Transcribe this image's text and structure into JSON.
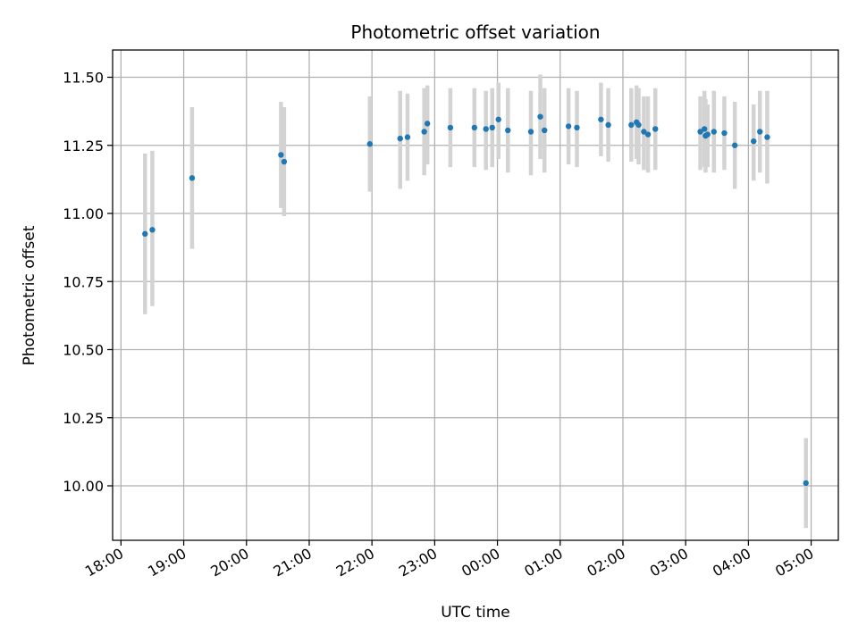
{
  "chart_data": {
    "type": "scatter",
    "title": "Photometric offset variation",
    "xlabel": "UTC time",
    "ylabel": "Photometric offset",
    "grid": true,
    "x_axis": {
      "kind": "time",
      "min": "18:00",
      "max": "05:00",
      "range": [
        "17:52",
        "05:26"
      ],
      "ticks": [
        "18:00",
        "19:00",
        "20:00",
        "21:00",
        "22:00",
        "23:00",
        "00:00",
        "01:00",
        "02:00",
        "03:00",
        "04:00",
        "05:00"
      ]
    },
    "y_axis": {
      "range": [
        9.8,
        11.6
      ],
      "ticks": [
        10.0,
        10.25,
        10.5,
        10.75,
        11.0,
        11.25,
        11.5
      ],
      "tick_labels": [
        "10.00",
        "10.25",
        "10.50",
        "10.75",
        "11.00",
        "11.25",
        "11.50"
      ]
    },
    "colors": {
      "points": "#1f77b4",
      "errorbars": "#d3d3d3",
      "grid": "#b0b0b0"
    },
    "points": [
      {
        "t": "18:23",
        "y": 10.925,
        "lo": 10.63,
        "hi": 11.22
      },
      {
        "t": "18:30",
        "y": 10.94,
        "lo": 10.66,
        "hi": 11.23
      },
      {
        "t": "19:08",
        "y": 11.13,
        "lo": 10.87,
        "hi": 11.39
      },
      {
        "t": "20:33",
        "y": 11.215,
        "lo": 11.02,
        "hi": 11.41
      },
      {
        "t": "20:36",
        "y": 11.19,
        "lo": 10.99,
        "hi": 11.39
      },
      {
        "t": "21:58",
        "y": 11.255,
        "lo": 11.08,
        "hi": 11.43
      },
      {
        "t": "22:27",
        "y": 11.275,
        "lo": 11.09,
        "hi": 11.45
      },
      {
        "t": "22:34",
        "y": 11.28,
        "lo": 11.12,
        "hi": 11.44
      },
      {
        "t": "22:50",
        "y": 11.3,
        "lo": 11.14,
        "hi": 11.46
      },
      {
        "t": "22:53",
        "y": 11.33,
        "lo": 11.18,
        "hi": 11.47
      },
      {
        "t": "23:15",
        "y": 11.315,
        "lo": 11.17,
        "hi": 11.46
      },
      {
        "t": "23:38",
        "y": 11.315,
        "lo": 11.17,
        "hi": 11.46
      },
      {
        "t": "23:49",
        "y": 11.31,
        "lo": 11.16,
        "hi": 11.45
      },
      {
        "t": "23:55",
        "y": 11.315,
        "lo": 11.17,
        "hi": 11.46
      },
      {
        "t": "00:01",
        "y": 11.345,
        "lo": 11.2,
        "hi": 11.48
      },
      {
        "t": "00:10",
        "y": 11.305,
        "lo": 11.15,
        "hi": 11.46
      },
      {
        "t": "00:32",
        "y": 11.3,
        "lo": 11.14,
        "hi": 11.45
      },
      {
        "t": "00:41",
        "y": 11.355,
        "lo": 11.2,
        "hi": 11.51
      },
      {
        "t": "00:45",
        "y": 11.305,
        "lo": 11.15,
        "hi": 11.46
      },
      {
        "t": "01:08",
        "y": 11.32,
        "lo": 11.18,
        "hi": 11.46
      },
      {
        "t": "01:16",
        "y": 11.315,
        "lo": 11.17,
        "hi": 11.45
      },
      {
        "t": "01:39",
        "y": 11.345,
        "lo": 11.21,
        "hi": 11.48
      },
      {
        "t": "01:46",
        "y": 11.325,
        "lo": 11.19,
        "hi": 11.46
      },
      {
        "t": "02:08",
        "y": 11.325,
        "lo": 11.19,
        "hi": 11.46
      },
      {
        "t": "02:13",
        "y": 11.335,
        "lo": 11.2,
        "hi": 11.47
      },
      {
        "t": "02:15",
        "y": 11.325,
        "lo": 11.18,
        "hi": 11.46
      },
      {
        "t": "02:20",
        "y": 11.3,
        "lo": 11.16,
        "hi": 11.43
      },
      {
        "t": "02:24",
        "y": 11.29,
        "lo": 11.15,
        "hi": 11.43
      },
      {
        "t": "02:31",
        "y": 11.31,
        "lo": 11.16,
        "hi": 11.46
      },
      {
        "t": "03:14",
        "y": 11.3,
        "lo": 11.16,
        "hi": 11.43
      },
      {
        "t": "03:18",
        "y": 11.31,
        "lo": 11.17,
        "hi": 11.45
      },
      {
        "t": "03:19",
        "y": 11.285,
        "lo": 11.15,
        "hi": 11.42
      },
      {
        "t": "03:21",
        "y": 11.29,
        "lo": 11.17,
        "hi": 11.4
      },
      {
        "t": "03:27",
        "y": 11.3,
        "lo": 11.15,
        "hi": 11.45
      },
      {
        "t": "03:37",
        "y": 11.295,
        "lo": 11.16,
        "hi": 11.43
      },
      {
        "t": "03:47",
        "y": 11.25,
        "lo": 11.09,
        "hi": 11.41
      },
      {
        "t": "04:05",
        "y": 11.265,
        "lo": 11.12,
        "hi": 11.4
      },
      {
        "t": "04:11",
        "y": 11.3,
        "lo": 11.15,
        "hi": 11.45
      },
      {
        "t": "04:18",
        "y": 11.28,
        "lo": 11.11,
        "hi": 11.45
      },
      {
        "t": "04:55",
        "y": 10.01,
        "lo": 9.845,
        "hi": 10.175
      }
    ]
  }
}
